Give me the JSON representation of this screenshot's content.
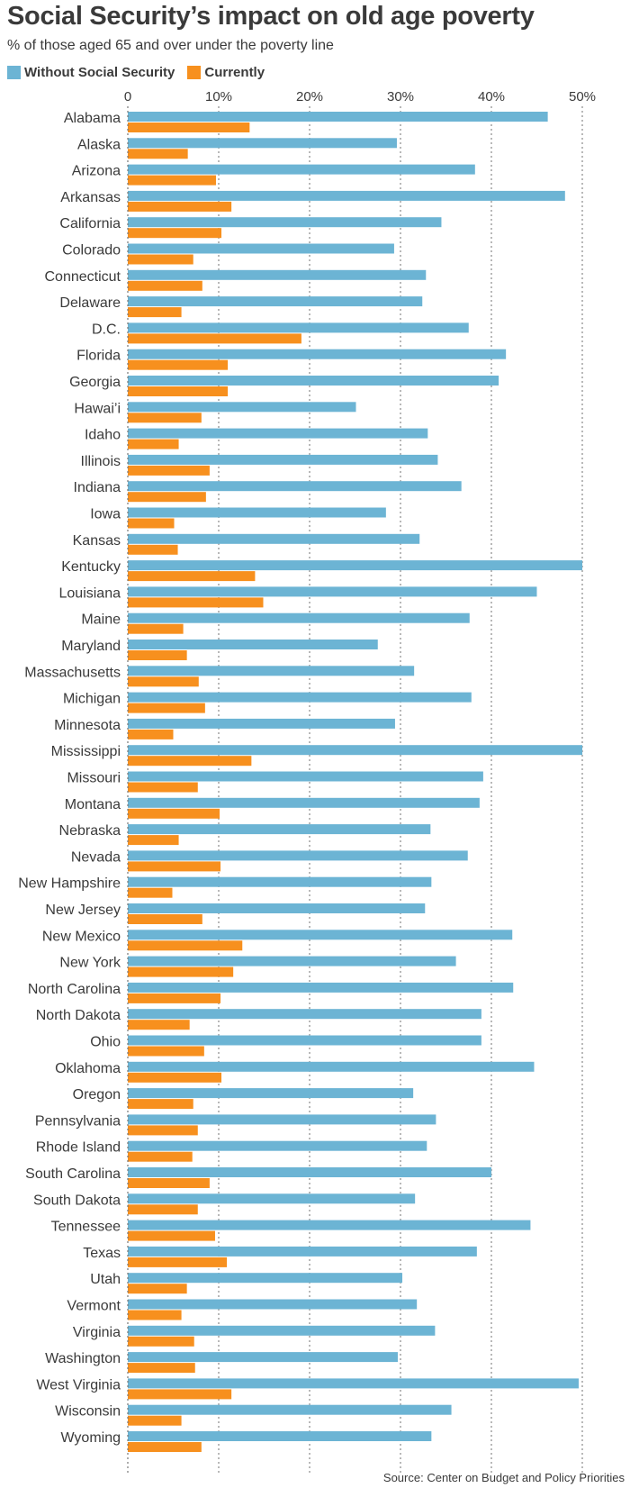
{
  "header": {
    "title": "Social Security’s impact on old age poverty",
    "subtitle": "% of those aged 65 and over under the poverty line"
  },
  "legend": {
    "without_label": "Without Social Security",
    "currently_label": "Currently"
  },
  "source": "Source: Center on Budget and Policy Priorities",
  "colors": {
    "without": "#6cb4d4",
    "currently": "#f7901e",
    "grid": "#8a8a8a",
    "text": "#3a3a3a"
  },
  "chart_data": {
    "type": "bar",
    "orientation": "horizontal",
    "xlim": [
      0,
      50
    ],
    "ticks": [
      0,
      10,
      20,
      30,
      40,
      50
    ],
    "tick_labels": [
      "0",
      "10%",
      "20%",
      "30%",
      "40%",
      "50%"
    ],
    "grid": true,
    "legend_position": "top-left",
    "categories": [
      "Alabama",
      "Alaska",
      "Arizona",
      "Arkansas",
      "California",
      "Colorado",
      "Connecticut",
      "Delaware",
      "D.C.",
      "Florida",
      "Georgia",
      "Hawai’i",
      "Idaho",
      "Illinois",
      "Indiana",
      "Iowa",
      "Kansas",
      "Kentucky",
      "Louisiana",
      "Maine",
      "Maryland",
      "Massachusetts",
      "Michigan",
      "Minnesota",
      "Mississippi",
      "Missouri",
      "Montana",
      "Nebraska",
      "Nevada",
      "New Hampshire",
      "New Jersey",
      "New Mexico",
      "New York",
      "North Carolina",
      "North Dakota",
      "Ohio",
      "Oklahoma",
      "Oregon",
      "Pennsylvania",
      "Rhode Island",
      "South Carolina",
      "South Dakota",
      "Tennessee",
      "Texas",
      "Utah",
      "Vermont",
      "Virginia",
      "Washington",
      "West Virginia",
      "Wisconsin",
      "Wyoming"
    ],
    "series": [
      {
        "name": "Without Social Security",
        "values": [
          46.2,
          29.6,
          38.2,
          48.1,
          34.5,
          29.3,
          32.8,
          32.4,
          37.5,
          41.6,
          40.8,
          25.1,
          33.0,
          34.1,
          36.7,
          28.4,
          32.1,
          50.0,
          45.0,
          37.6,
          27.5,
          31.5,
          37.8,
          29.4,
          50.0,
          39.1,
          38.7,
          33.3,
          37.4,
          33.4,
          32.7,
          42.3,
          36.1,
          42.4,
          38.9,
          38.9,
          44.7,
          31.4,
          33.9,
          32.9,
          40.0,
          31.6,
          44.3,
          38.4,
          30.2,
          31.8,
          33.8,
          29.7,
          49.6,
          35.6,
          33.4
        ]
      },
      {
        "name": "Currently",
        "values": [
          13.4,
          6.6,
          9.7,
          11.4,
          10.3,
          7.2,
          8.2,
          5.9,
          19.1,
          11.0,
          11.0,
          8.1,
          5.6,
          9.0,
          8.6,
          5.1,
          5.5,
          14.0,
          14.9,
          6.1,
          6.5,
          7.8,
          8.5,
          5.0,
          13.6,
          7.7,
          10.1,
          5.6,
          10.2,
          4.9,
          8.2,
          12.6,
          11.6,
          10.2,
          6.8,
          8.4,
          10.3,
          7.2,
          7.7,
          7.1,
          9.0,
          7.7,
          9.6,
          10.9,
          6.5,
          5.9,
          7.3,
          7.4,
          11.4,
          5.9,
          8.1
        ]
      }
    ]
  }
}
